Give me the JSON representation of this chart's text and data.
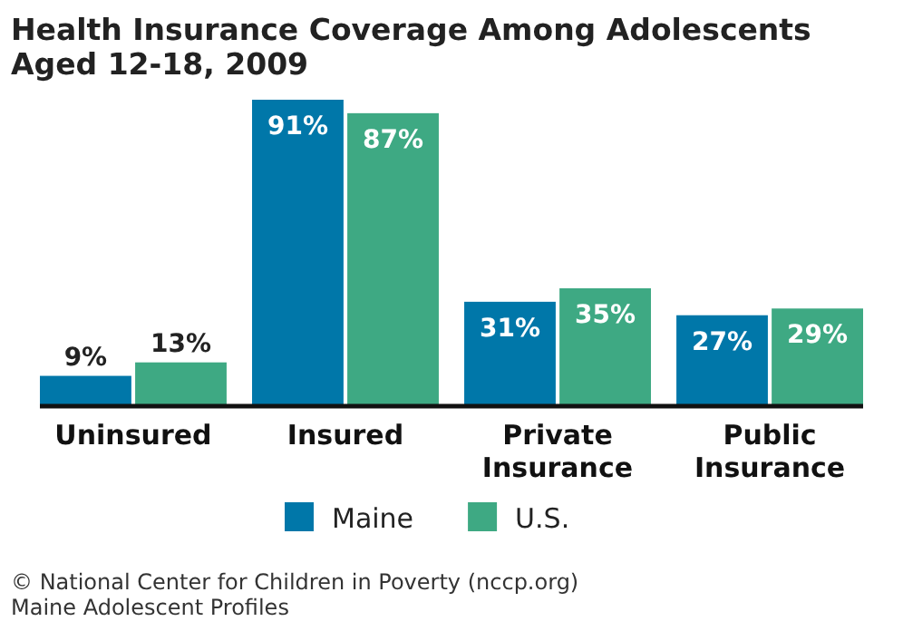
{
  "chart_data": {
    "type": "bar",
    "title": "Health Insurance Coverage Among Adolescents Aged 12-18, 2009",
    "categories": [
      "Uninsured",
      "Insured",
      "Private Insurance",
      "Public Insurance"
    ],
    "series": [
      {
        "name": "Maine",
        "color": "#0077a9",
        "values": [
          9,
          91,
          31,
          27
        ],
        "value_labels": [
          "9%",
          "91%",
          "31%",
          "27%"
        ]
      },
      {
        "name": "U.S.",
        "color": "#3ea983",
        "values": [
          13,
          87,
          35,
          29
        ],
        "value_labels": [
          "13%",
          "87%",
          "35%",
          "29%"
        ]
      }
    ],
    "legend": "bottom",
    "annotations": [
      "© National Center for Children in Poverty (nccp.org)",
      "Maine Adolescent Profiles"
    ]
  }
}
